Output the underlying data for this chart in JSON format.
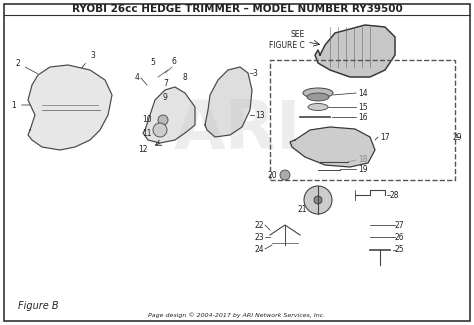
{
  "title": "RYOBI 26cc HEDGE TRIMMER – MODEL NUMBER RY39500",
  "figure_label": "Figure B",
  "footer": "Page design © 2004-2017 by ARI Network Services, Inc.",
  "bg_color": "#ffffff",
  "border_color": "#333333",
  "text_color": "#222222",
  "title_fontsize": 7.5,
  "see_figure_c": "SEE\nFIGURE C",
  "watermark": "ARI",
  "dashed_box": true
}
